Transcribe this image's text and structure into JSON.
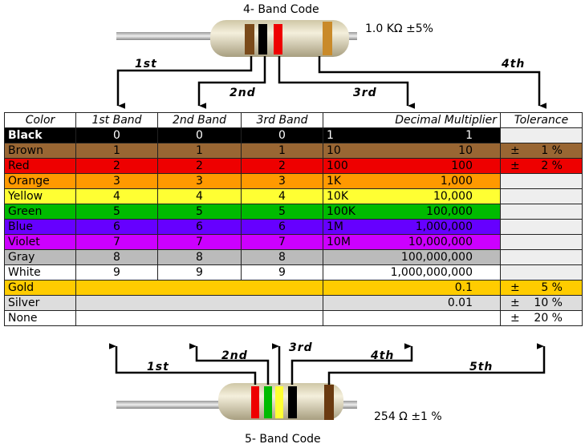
{
  "title_top": "4- Band Code",
  "title_bottom": "5- Band Code",
  "top_value": "1.0 KΩ  ±5%",
  "bottom_value": "254 Ω  ±1 %",
  "top_arrows": [
    "1st",
    "2nd",
    "3rd",
    "4th"
  ],
  "bottom_arrows": [
    "1st",
    "2nd",
    "3rd",
    "4th",
    "5th"
  ],
  "headers": [
    "Color",
    "1st Band",
    "2nd Band",
    "3rd Band",
    "Decimal Multiplier",
    "Tolerance"
  ],
  "rows": [
    {
      "color": "Black",
      "bg": "#000000",
      "fg": "#ffffff",
      "d": [
        "0",
        "0",
        "0"
      ],
      "ms": "1",
      "ml": "1",
      "tol": ""
    },
    {
      "color": "Brown",
      "bg": "#996633",
      "fg": "#000000",
      "d": [
        "1",
        "1",
        "1"
      ],
      "ms": "10",
      "ml": "10",
      "tol": "1 %"
    },
    {
      "color": "Red",
      "bg": "#ee0000",
      "fg": "#000000",
      "d": [
        "2",
        "2",
        "2"
      ],
      "ms": "100",
      "ml": "100",
      "tol": "2 %"
    },
    {
      "color": "Orange",
      "bg": "#ff9900",
      "fg": "#000000",
      "d": [
        "3",
        "3",
        "3"
      ],
      "ms": "1K",
      "ml": "1,000",
      "tol": ""
    },
    {
      "color": "Yellow",
      "bg": "#ffff33",
      "fg": "#000000",
      "d": [
        "4",
        "4",
        "4"
      ],
      "ms": "10K",
      "ml": "10,000",
      "tol": ""
    },
    {
      "color": "Green",
      "bg": "#00bb00",
      "fg": "#000000",
      "d": [
        "5",
        "5",
        "5"
      ],
      "ms": "100K",
      "ml": "100,000",
      "tol": ""
    },
    {
      "color": "Blue",
      "bg": "#6600ff",
      "fg": "#000000",
      "d": [
        "6",
        "6",
        "6"
      ],
      "ms": "1M",
      "ml": "1,000,000",
      "tol": ""
    },
    {
      "color": "Violet",
      "bg": "#cc00ff",
      "fg": "#000000",
      "d": [
        "7",
        "7",
        "7"
      ],
      "ms": "10M",
      "ml": "10,000,000",
      "tol": ""
    },
    {
      "color": "Gray",
      "bg": "#bbbbbb",
      "fg": "#000000",
      "d": [
        "8",
        "8",
        "8"
      ],
      "ms": "",
      "ml": "100,000,000",
      "tol": ""
    },
    {
      "color": "White",
      "bg": "#ffffff",
      "fg": "#000000",
      "d": [
        "9",
        "9",
        "9"
      ],
      "ms": "",
      "ml": "1,000,000,000",
      "tol": ""
    },
    {
      "color": "Gold",
      "bg": "#ffcc00",
      "fg": "#000000",
      "d": [],
      "ms": "",
      "ml": "0.1",
      "tol": "5 %"
    },
    {
      "color": "Silver",
      "bg": "#dddddd",
      "fg": "#000000",
      "d": [],
      "ms": "",
      "ml": "0.01",
      "tol": "10 %"
    },
    {
      "color": "None",
      "bg": "#ffffff",
      "fg": "#000000",
      "d": [],
      "ms": "",
      "ml": "",
      "tol": "20 %"
    }
  ],
  "pm": "±"
}
